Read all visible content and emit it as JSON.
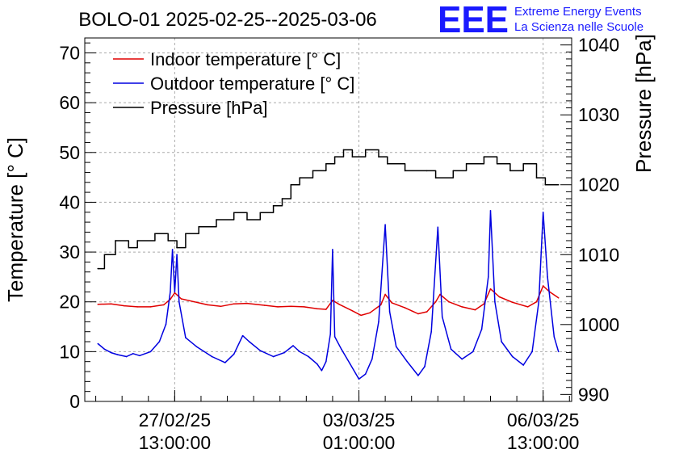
{
  "header": {
    "title": "BOLO-01 2025-02-25--2025-03-06",
    "logo_text": "EEE",
    "org_line1": "Extreme Energy Events",
    "org_line2": "La Scienza nelle Scuole"
  },
  "colors": {
    "indoor": "#e00000",
    "outdoor": "#0000e0",
    "pressure": "#000000",
    "logo": "#1a1aff"
  },
  "chart_data": {
    "type": "line",
    "title": "BOLO-01 2025-02-25--2025-03-06",
    "ylabel_left": "Temperature [° C]",
    "ylabel_right": "Pressure [hPa]",
    "ylim_left": [
      0,
      73
    ],
    "ylim_right": [
      989,
      1041
    ],
    "yticks_left": [
      0,
      10,
      20,
      30,
      40,
      50,
      60,
      70
    ],
    "yticks_right": [
      990,
      1000,
      1010,
      1020,
      1030,
      1040
    ],
    "xlim": [
      "2025-02-25 20:00",
      "2025-03-07 02:00"
    ],
    "xticks": [
      {
        "t": "2025-02-27 13:00",
        "date": "27/02/25",
        "time": "13:00:00"
      },
      {
        "t": "2025-03-03 01:00",
        "date": "03/03/25",
        "time": "01:00:00"
      },
      {
        "t": "2025-03-06 13:00",
        "date": "06/03/25",
        "time": "13:00:00"
      }
    ],
    "grid": true,
    "legend_position": "top-left",
    "series": [
      {
        "name": "Indoor temperature [° C]",
        "axis": "left",
        "points": [
          [
            "2025-02-26 02:00",
            19.5
          ],
          [
            "2025-02-26 08:00",
            19.6
          ],
          [
            "2025-02-26 14:00",
            19.2
          ],
          [
            "2025-02-26 20:00",
            19.0
          ],
          [
            "2025-02-27 02:00",
            19.0
          ],
          [
            "2025-02-27 08:00",
            19.4
          ],
          [
            "2025-02-27 11:00",
            20.5
          ],
          [
            "2025-02-27 13:00",
            21.8
          ],
          [
            "2025-02-27 16:00",
            20.6
          ],
          [
            "2025-02-27 22:00",
            20.0
          ],
          [
            "2025-02-28 04:00",
            19.4
          ],
          [
            "2025-02-28 10:00",
            19.1
          ],
          [
            "2025-02-28 16:00",
            19.6
          ],
          [
            "2025-02-28 22:00",
            19.7
          ],
          [
            "2025-03-01 06:00",
            19.3
          ],
          [
            "2025-03-01 12:00",
            19.0
          ],
          [
            "2025-03-01 18:00",
            19.1
          ],
          [
            "2025-03-02 00:00",
            19.0
          ],
          [
            "2025-03-02 06:00",
            18.6
          ],
          [
            "2025-03-02 10:00",
            18.5
          ],
          [
            "2025-03-02 13:00",
            20.3
          ],
          [
            "2025-03-02 16:00",
            19.5
          ],
          [
            "2025-03-02 22:00",
            18.2
          ],
          [
            "2025-03-03 02:00",
            17.3
          ],
          [
            "2025-03-03 06:00",
            17.8
          ],
          [
            "2025-03-03 11:00",
            19.4
          ],
          [
            "2025-03-03 13:00",
            21.5
          ],
          [
            "2025-03-03 16:00",
            19.8
          ],
          [
            "2025-03-03 22:00",
            18.8
          ],
          [
            "2025-03-04 04:00",
            17.6
          ],
          [
            "2025-03-04 08:00",
            18.0
          ],
          [
            "2025-03-04 12:00",
            20.0
          ],
          [
            "2025-03-04 14:00",
            21.5
          ],
          [
            "2025-03-04 18:00",
            20.0
          ],
          [
            "2025-03-05 00:00",
            19.0
          ],
          [
            "2025-03-05 06:00",
            18.4
          ],
          [
            "2025-03-05 10:00",
            19.6
          ],
          [
            "2025-03-05 13:00",
            22.6
          ],
          [
            "2025-03-05 17:00",
            21.0
          ],
          [
            "2025-03-05 23:00",
            19.9
          ],
          [
            "2025-03-06 06:00",
            19.0
          ],
          [
            "2025-03-06 10:00",
            20.0
          ],
          [
            "2025-03-06 13:00",
            23.2
          ],
          [
            "2025-03-06 16:00",
            22.0
          ],
          [
            "2025-03-06 20:00",
            20.8
          ]
        ]
      },
      {
        "name": "Outdoor temperature [° C]",
        "axis": "left",
        "points": [
          [
            "2025-02-26 02:00",
            11.6
          ],
          [
            "2025-02-26 05:00",
            10.5
          ],
          [
            "2025-02-26 08:00",
            9.8
          ],
          [
            "2025-02-26 11:00",
            9.4
          ],
          [
            "2025-02-26 15:00",
            9.0
          ],
          [
            "2025-02-26 18:00",
            9.6
          ],
          [
            "2025-02-26 21:00",
            9.2
          ],
          [
            "2025-02-27 02:00",
            10.0
          ],
          [
            "2025-02-27 06:00",
            12.0
          ],
          [
            "2025-02-27 09:00",
            15.5
          ],
          [
            "2025-02-27 11:00",
            22.0
          ],
          [
            "2025-02-27 12:00",
            30.5
          ],
          [
            "2025-02-27 13:00",
            22.0
          ],
          [
            "2025-02-27 14:00",
            29.5
          ],
          [
            "2025-02-27 15:00",
            20.0
          ],
          [
            "2025-02-27 18:00",
            12.8
          ],
          [
            "2025-02-27 23:00",
            11.0
          ],
          [
            "2025-02-28 06:00",
            9.0
          ],
          [
            "2025-02-28 12:00",
            7.8
          ],
          [
            "2025-02-28 16:00",
            9.5
          ],
          [
            "2025-02-28 20:00",
            13.2
          ],
          [
            "2025-02-28 23:00",
            12.0
          ],
          [
            "2025-03-01 04:00",
            10.2
          ],
          [
            "2025-03-01 10:00",
            9.0
          ],
          [
            "2025-03-01 15:00",
            9.8
          ],
          [
            "2025-03-01 19:00",
            11.2
          ],
          [
            "2025-03-01 22:00",
            10.0
          ],
          [
            "2025-03-02 02:00",
            9.0
          ],
          [
            "2025-03-02 06:00",
            7.5
          ],
          [
            "2025-03-02 08:00",
            6.2
          ],
          [
            "2025-03-02 10:00",
            8.0
          ],
          [
            "2025-03-02 12:00",
            13.5
          ],
          [
            "2025-03-02 13:00",
            30.5
          ],
          [
            "2025-03-02 14:00",
            13.0
          ],
          [
            "2025-03-02 17:00",
            10.5
          ],
          [
            "2025-03-02 21:00",
            7.5
          ],
          [
            "2025-03-03 01:00",
            4.5
          ],
          [
            "2025-03-03 04:00",
            5.5
          ],
          [
            "2025-03-03 07:00",
            8.5
          ],
          [
            "2025-03-03 10:00",
            16.0
          ],
          [
            "2025-03-03 13:00",
            35.5
          ],
          [
            "2025-03-03 15:00",
            18.0
          ],
          [
            "2025-03-03 18:00",
            11.0
          ],
          [
            "2025-03-03 23:00",
            8.0
          ],
          [
            "2025-03-04 04:00",
            5.2
          ],
          [
            "2025-03-04 07:00",
            7.0
          ],
          [
            "2025-03-04 10:00",
            14.0
          ],
          [
            "2025-03-04 13:00",
            35.0
          ],
          [
            "2025-03-04 15:00",
            17.0
          ],
          [
            "2025-03-04 19:00",
            10.5
          ],
          [
            "2025-03-05 00:00",
            8.5
          ],
          [
            "2025-03-05 05:00",
            10.0
          ],
          [
            "2025-03-05 09:00",
            14.5
          ],
          [
            "2025-03-05 12:00",
            25.0
          ],
          [
            "2025-03-05 13:00",
            38.3
          ],
          [
            "2025-03-05 15:00",
            20.0
          ],
          [
            "2025-03-05 18:00",
            12.0
          ],
          [
            "2025-03-05 23:00",
            9.0
          ],
          [
            "2025-03-06 04:00",
            7.3
          ],
          [
            "2025-03-06 08:00",
            10.0
          ],
          [
            "2025-03-06 11:00",
            20.0
          ],
          [
            "2025-03-06 13:00",
            38.0
          ],
          [
            "2025-03-06 15:00",
            25.0
          ],
          [
            "2025-03-06 18:00",
            13.0
          ],
          [
            "2025-03-06 20:00",
            10.0
          ]
        ]
      },
      {
        "name": "Pressure [hPa]",
        "axis": "right",
        "step": true,
        "points": [
          [
            "2025-02-26 02:00",
            1008
          ],
          [
            "2025-02-26 05:00",
            1010
          ],
          [
            "2025-02-26 10:00",
            1012
          ],
          [
            "2025-02-26 16:00",
            1011
          ],
          [
            "2025-02-26 20:00",
            1012
          ],
          [
            "2025-02-27 04:00",
            1013
          ],
          [
            "2025-02-27 10:00",
            1012
          ],
          [
            "2025-02-27 14:00",
            1011
          ],
          [
            "2025-02-27 18:00",
            1013
          ],
          [
            "2025-02-28 00:00",
            1014
          ],
          [
            "2025-02-28 08:00",
            1015
          ],
          [
            "2025-02-28 16:00",
            1016
          ],
          [
            "2025-02-28 22:00",
            1015
          ],
          [
            "2025-03-01 04:00",
            1016
          ],
          [
            "2025-03-01 10:00",
            1017
          ],
          [
            "2025-03-01 14:00",
            1018
          ],
          [
            "2025-03-01 18:00",
            1020
          ],
          [
            "2025-03-01 22:00",
            1021
          ],
          [
            "2025-03-02 04:00",
            1022
          ],
          [
            "2025-03-02 10:00",
            1023
          ],
          [
            "2025-03-02 14:00",
            1024
          ],
          [
            "2025-03-02 18:00",
            1025
          ],
          [
            "2025-03-02 22:00",
            1024
          ],
          [
            "2025-03-03 04:00",
            1025
          ],
          [
            "2025-03-03 10:00",
            1024
          ],
          [
            "2025-03-03 14:00",
            1023
          ],
          [
            "2025-03-03 22:00",
            1022
          ],
          [
            "2025-03-04 08:00",
            1022
          ],
          [
            "2025-03-04 12:00",
            1021
          ],
          [
            "2025-03-04 20:00",
            1022
          ],
          [
            "2025-03-05 02:00",
            1023
          ],
          [
            "2025-03-05 10:00",
            1024
          ],
          [
            "2025-03-05 16:00",
            1023
          ],
          [
            "2025-03-05 22:00",
            1022
          ],
          [
            "2025-03-06 04:00",
            1023
          ],
          [
            "2025-03-06 10:00",
            1021
          ],
          [
            "2025-03-06 14:00",
            1020
          ],
          [
            "2025-03-06 20:00",
            1020
          ]
        ]
      }
    ]
  }
}
